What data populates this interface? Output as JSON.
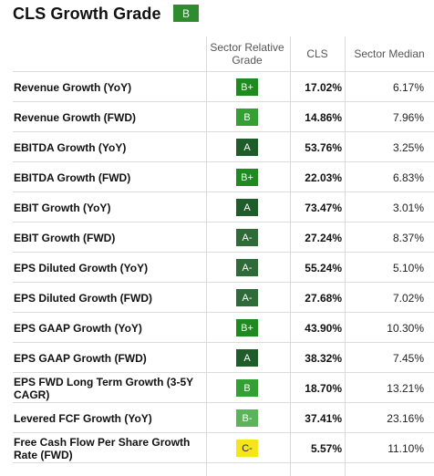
{
  "header": {
    "title": "CLS Growth Grade",
    "overall_grade": "B",
    "overall_grade_color": "#2e8b2e"
  },
  "columns": {
    "grade": "Sector Relative Grade",
    "cls": "CLS",
    "median": "Sector Median"
  },
  "grade_colors": {
    "A": "#1e5c2a",
    "A-": "#2f6b38",
    "B+": "#1f8a1f",
    "B": "#34a034",
    "B-": "#5ab45a",
    "C-": "#f5e51b"
  },
  "rows": [
    {
      "metric": "Revenue Growth (YoY)",
      "grade": "B+",
      "cls": "17.02%",
      "median": "6.17%"
    },
    {
      "metric": "Revenue Growth (FWD)",
      "grade": "B",
      "cls": "14.86%",
      "median": "7.96%"
    },
    {
      "metric": "EBITDA Growth (YoY)",
      "grade": "A",
      "cls": "53.76%",
      "median": "3.25%"
    },
    {
      "metric": "EBITDA Growth (FWD)",
      "grade": "B+",
      "cls": "22.03%",
      "median": "6.83%"
    },
    {
      "metric": "EBIT Growth (YoY)",
      "grade": "A",
      "cls": "73.47%",
      "median": "3.01%"
    },
    {
      "metric": "EBIT Growth (FWD)",
      "grade": "A-",
      "cls": "27.24%",
      "median": "8.37%"
    },
    {
      "metric": "EPS Diluted Growth (YoY)",
      "grade": "A-",
      "cls": "55.24%",
      "median": "5.10%"
    },
    {
      "metric": "EPS Diluted Growth (FWD)",
      "grade": "A-",
      "cls": "27.68%",
      "median": "7.02%"
    },
    {
      "metric": "EPS GAAP Growth (YoY)",
      "grade": "B+",
      "cls": "43.90%",
      "median": "10.30%"
    },
    {
      "metric": "EPS GAAP Growth (FWD)",
      "grade": "A",
      "cls": "38.32%",
      "median": "7.45%"
    },
    {
      "metric": "EPS FWD Long Term Growth (3-5Y CAGR)",
      "grade": "B",
      "cls": "18.70%",
      "median": "13.21%"
    },
    {
      "metric": "Levered FCF Growth (YoY)",
      "grade": "B-",
      "cls": "37.41%",
      "median": "23.16%"
    },
    {
      "metric": "Free Cash Flow Per Share Growth Rate (FWD)",
      "grade": "C-",
      "cls": "5.57%",
      "median": "11.10%"
    }
  ]
}
